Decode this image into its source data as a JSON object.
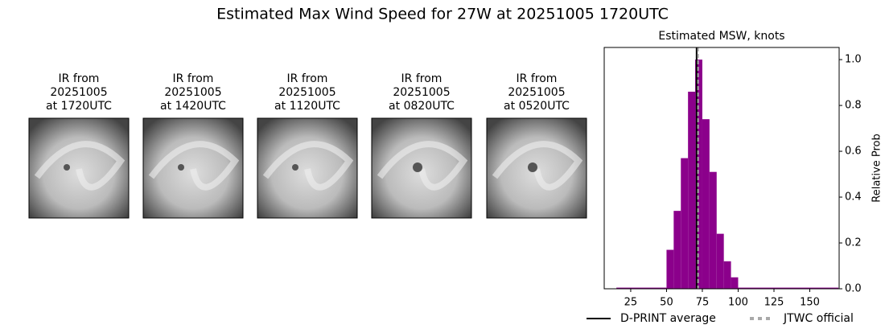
{
  "title": "Estimated Max Wind Speed for 27W at 20251005 1720UTC",
  "panels": [
    {
      "lines": [
        "IR from",
        "20251005",
        "at 1720UTC"
      ]
    },
    {
      "lines": [
        "IR from",
        "20251005",
        "at 1420UTC"
      ]
    },
    {
      "lines": [
        "IR from",
        "20251005",
        "at 1120UTC"
      ]
    },
    {
      "lines": [
        "IR from",
        "20251005",
        "at 0820UTC"
      ]
    },
    {
      "lines": [
        "IR from",
        "20251005",
        "at 0520UTC"
      ]
    }
  ],
  "chart_data": {
    "type": "histogram",
    "title": "Estimated MSW, knots",
    "y_label": "Relative Prob",
    "bins": [
      15,
      50,
      55,
      60,
      65,
      70,
      75,
      80,
      85,
      90,
      95,
      100,
      170
    ],
    "counts": [
      0.005,
      0.17,
      0.34,
      0.57,
      0.86,
      1.0,
      0.74,
      0.51,
      0.24,
      0.12,
      0.05,
      0.005
    ],
    "color": "#8b008b",
    "xlim": [
      6.5,
      170.5
    ],
    "xticks": [
      25,
      50,
      75,
      100,
      125,
      150
    ],
    "ylim": [
      0,
      1.053
    ],
    "yticks": [
      {
        "value": 0,
        "label": "0.0"
      },
      {
        "value": 0.2,
        "label": "0.2"
      },
      {
        "value": 0.4,
        "label": "0.4"
      },
      {
        "value": 0.6,
        "label": "0.6"
      },
      {
        "value": 0.8,
        "label": "0.8"
      },
      {
        "value": 1.0,
        "label": "1.0"
      }
    ],
    "lines": [
      {
        "name": "D-PRINT average",
        "value": 71,
        "color": "#000000",
        "style": "solid"
      },
      {
        "name": "JTWC official",
        "value": 72,
        "color": "#a9a9a9",
        "style": "dashed"
      }
    ]
  }
}
